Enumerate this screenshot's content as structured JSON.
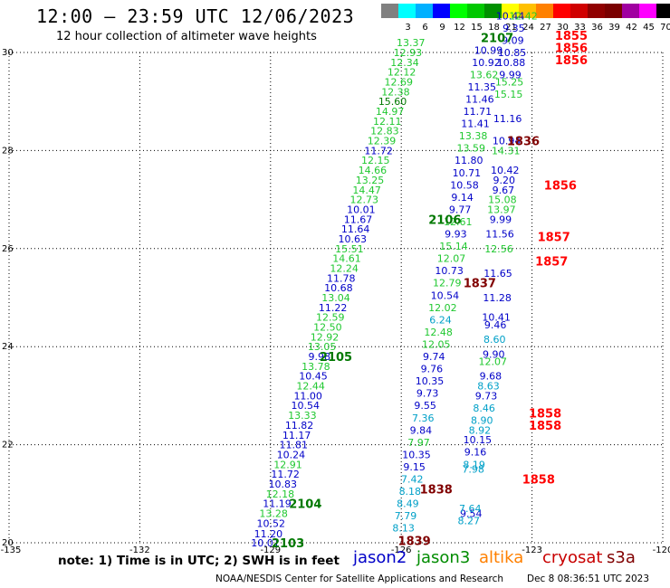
{
  "header": {
    "title": "12:00 – 23:59 UTC 12/06/2023",
    "subtitle": "12 hour collection of altimeter wave heights"
  },
  "legend": {
    "unit": "(ft)",
    "swatches": [
      {
        "label": "",
        "color": "#808080"
      },
      {
        "label": "3",
        "color": "#00ffff"
      },
      {
        "label": "6",
        "color": "#00b0ff"
      },
      {
        "label": "9",
        "color": "#0000ff"
      },
      {
        "label": "12",
        "color": "#00ff00"
      },
      {
        "label": "15",
        "color": "#00c800"
      },
      {
        "label": "18",
        "color": "#009000"
      },
      {
        "label": "21",
        "color": "#ffff00"
      },
      {
        "label": "24",
        "color": "#ffc000"
      },
      {
        "label": "27",
        "color": "#ff8000"
      },
      {
        "label": "30",
        "color": "#ff0000"
      },
      {
        "label": "33",
        "color": "#d00000"
      },
      {
        "label": "36",
        "color": "#900000"
      },
      {
        "label": "39",
        "color": "#7a0000"
      },
      {
        "label": "42",
        "color": "#a000a0"
      },
      {
        "label": "45",
        "color": "#ff00ff"
      },
      {
        "label": "70",
        "color": "#000000"
      }
    ]
  },
  "map": {
    "x_ticks": [
      "-135",
      "-132",
      "-129",
      "-126",
      "-123",
      "-120"
    ],
    "y_ticks": [
      "20",
      "22",
      "24",
      "26",
      "28",
      "30"
    ],
    "lon_range": [
      -135,
      -120
    ],
    "lat_range": [
      20,
      30
    ],
    "grid": true
  },
  "colors": {
    "blue": "#0000c8",
    "green": "#20c830",
    "cyan": "#00a0c8",
    "darkgreen": "#007800",
    "red": "#ff0000",
    "darkred": "#800000"
  },
  "observations": [
    {
      "lon": -129.12,
      "lat": 20.0,
      "text": "10.01",
      "c": "blue"
    },
    {
      "lon": -129.05,
      "lat": 20.18,
      "text": "11.20",
      "c": "blue"
    },
    {
      "lon": -128.99,
      "lat": 20.4,
      "text": "10.52",
      "c": "blue"
    },
    {
      "lon": -128.93,
      "lat": 20.6,
      "text": "13.28",
      "c": "green"
    },
    {
      "lon": -128.85,
      "lat": 20.8,
      "text": "11.19",
      "c": "blue"
    },
    {
      "lon": -128.78,
      "lat": 21.0,
      "text": "12.18",
      "c": "green"
    },
    {
      "lon": -128.72,
      "lat": 21.2,
      "text": "10.83",
      "c": "blue"
    },
    {
      "lon": -128.66,
      "lat": 21.4,
      "text": "11.72",
      "c": "blue"
    },
    {
      "lon": -128.6,
      "lat": 21.6,
      "text": "12.91",
      "c": "green"
    },
    {
      "lon": -128.53,
      "lat": 21.8,
      "text": "10.24",
      "c": "blue"
    },
    {
      "lon": -128.47,
      "lat": 22.0,
      "text": "11.81",
      "c": "blue"
    },
    {
      "lon": -128.4,
      "lat": 22.2,
      "text": "11.17",
      "c": "blue"
    },
    {
      "lon": -128.34,
      "lat": 22.4,
      "text": "11.82",
      "c": "blue"
    },
    {
      "lon": -128.27,
      "lat": 22.6,
      "text": "13.33",
      "c": "green"
    },
    {
      "lon": -128.2,
      "lat": 22.8,
      "text": "10.54",
      "c": "blue"
    },
    {
      "lon": -128.14,
      "lat": 23.0,
      "text": "11.00",
      "c": "blue"
    },
    {
      "lon": -128.08,
      "lat": 23.2,
      "text": "12.44",
      "c": "green"
    },
    {
      "lon": -128.02,
      "lat": 23.4,
      "text": "10.45",
      "c": "blue"
    },
    {
      "lon": -127.96,
      "lat": 23.6,
      "text": "13.78",
      "c": "green"
    },
    {
      "lon": -127.88,
      "lat": 23.8,
      "text": "9.98",
      "c": "blue"
    },
    {
      "lon": -127.82,
      "lat": 24.0,
      "text": "13.05",
      "c": "green"
    },
    {
      "lon": -127.76,
      "lat": 24.2,
      "text": "12.92",
      "c": "green"
    },
    {
      "lon": -127.69,
      "lat": 24.4,
      "text": "12.50",
      "c": "green"
    },
    {
      "lon": -127.63,
      "lat": 24.6,
      "text": "12.59",
      "c": "green"
    },
    {
      "lon": -127.57,
      "lat": 24.8,
      "text": "11.22",
      "c": "blue"
    },
    {
      "lon": -127.5,
      "lat": 25.0,
      "text": "13.04",
      "c": "green"
    },
    {
      "lon": -127.44,
      "lat": 25.2,
      "text": "10.68",
      "c": "blue"
    },
    {
      "lon": -127.38,
      "lat": 25.4,
      "text": "11.78",
      "c": "blue"
    },
    {
      "lon": -127.31,
      "lat": 25.6,
      "text": "12.24",
      "c": "green"
    },
    {
      "lon": -127.25,
      "lat": 25.8,
      "text": "14.61",
      "c": "green"
    },
    {
      "lon": -127.19,
      "lat": 26.0,
      "text": "15.51",
      "c": "green"
    },
    {
      "lon": -127.12,
      "lat": 26.2,
      "text": "10.63",
      "c": "blue"
    },
    {
      "lon": -127.05,
      "lat": 26.4,
      "text": "11.64",
      "c": "blue"
    },
    {
      "lon": -126.99,
      "lat": 26.6,
      "text": "11.67",
      "c": "blue"
    },
    {
      "lon": -126.92,
      "lat": 26.8,
      "text": "10.01",
      "c": "blue"
    },
    {
      "lon": -126.85,
      "lat": 27.0,
      "text": "12.73",
      "c": "green"
    },
    {
      "lon": -126.79,
      "lat": 27.2,
      "text": "14.47",
      "c": "green"
    },
    {
      "lon": -126.72,
      "lat": 27.4,
      "text": "13.25",
      "c": "green"
    },
    {
      "lon": -126.66,
      "lat": 27.6,
      "text": "14.66",
      "c": "green"
    },
    {
      "lon": -126.59,
      "lat": 27.8,
      "text": "12.15",
      "c": "green"
    },
    {
      "lon": -126.52,
      "lat": 28.0,
      "text": "11.72",
      "c": "blue"
    },
    {
      "lon": -126.45,
      "lat": 28.2,
      "text": "12.39",
      "c": "green"
    },
    {
      "lon": -126.38,
      "lat": 28.4,
      "text": "12.83",
      "c": "green"
    },
    {
      "lon": -126.32,
      "lat": 28.6,
      "text": "12.11",
      "c": "green"
    },
    {
      "lon": -126.26,
      "lat": 28.8,
      "text": "14.97",
      "c": "green"
    },
    {
      "lon": -126.2,
      "lat": 29.0,
      "text": "15.60",
      "c": "darkgreen"
    },
    {
      "lon": -126.13,
      "lat": 29.2,
      "text": "12.38",
      "c": "green"
    },
    {
      "lon": -126.06,
      "lat": 29.4,
      "text": "12.69",
      "c": "green"
    },
    {
      "lon": -125.99,
      "lat": 29.6,
      "text": "12.12",
      "c": "green"
    },
    {
      "lon": -125.92,
      "lat": 29.8,
      "text": "12.34",
      "c": "green"
    },
    {
      "lon": -125.85,
      "lat": 30.0,
      "text": "12.93",
      "c": "green"
    },
    {
      "lon": -125.78,
      "lat": 30.2,
      "text": "13.37",
      "c": "green"
    },
    {
      "lon": -125.95,
      "lat": 20.3,
      "text": "8.13",
      "c": "cyan"
    },
    {
      "lon": -125.9,
      "lat": 20.55,
      "text": "7.79",
      "c": "cyan"
    },
    {
      "lon": -125.85,
      "lat": 20.8,
      "text": "8.49",
      "c": "cyan"
    },
    {
      "lon": -125.8,
      "lat": 21.05,
      "text": "8.18",
      "c": "cyan"
    },
    {
      "lon": -125.75,
      "lat": 21.3,
      "text": "7.42",
      "c": "cyan"
    },
    {
      "lon": -125.7,
      "lat": 21.55,
      "text": "9.15",
      "c": "blue"
    },
    {
      "lon": -125.65,
      "lat": 21.8,
      "text": "10.35",
      "c": "blue"
    },
    {
      "lon": -125.6,
      "lat": 22.05,
      "text": "7.97",
      "c": "green"
    },
    {
      "lon": -125.55,
      "lat": 22.3,
      "text": "9.84",
      "c": "blue"
    },
    {
      "lon": -125.5,
      "lat": 22.55,
      "text": "7.36",
      "c": "cyan"
    },
    {
      "lon": -125.45,
      "lat": 22.8,
      "text": "9.55",
      "c": "blue"
    },
    {
      "lon": -125.4,
      "lat": 23.05,
      "text": "9.73",
      "c": "blue"
    },
    {
      "lon": -125.35,
      "lat": 23.3,
      "text": "10.35",
      "c": "blue"
    },
    {
      "lon": -125.3,
      "lat": 23.55,
      "text": "9.76",
      "c": "blue"
    },
    {
      "lon": -125.25,
      "lat": 23.8,
      "text": "9.74",
      "c": "blue"
    },
    {
      "lon": -125.2,
      "lat": 24.05,
      "text": "12.05",
      "c": "green"
    },
    {
      "lon": -125.15,
      "lat": 24.3,
      "text": "12.48",
      "c": "green"
    },
    {
      "lon": -125.1,
      "lat": 24.55,
      "text": "6.24",
      "c": "cyan"
    },
    {
      "lon": -125.05,
      "lat": 24.8,
      "text": "12.02",
      "c": "green"
    },
    {
      "lon": -125.0,
      "lat": 25.05,
      "text": "10.54",
      "c": "blue"
    },
    {
      "lon": -124.95,
      "lat": 25.3,
      "text": "12.79",
      "c": "green"
    },
    {
      "lon": -124.9,
      "lat": 25.55,
      "text": "10.73",
      "c": "blue"
    },
    {
      "lon": -124.85,
      "lat": 25.8,
      "text": "12.07",
      "c": "green"
    },
    {
      "lon": -124.8,
      "lat": 26.05,
      "text": "15.14",
      "c": "green"
    },
    {
      "lon": -124.75,
      "lat": 26.3,
      "text": "9.93",
      "c": "blue"
    },
    {
      "lon": -124.7,
      "lat": 26.55,
      "text": "12.61",
      "c": "green"
    },
    {
      "lon": -124.65,
      "lat": 26.8,
      "text": "9.77",
      "c": "blue"
    },
    {
      "lon": -124.6,
      "lat": 27.05,
      "text": "9.14",
      "c": "blue"
    },
    {
      "lon": -124.55,
      "lat": 27.3,
      "text": "10.58",
      "c": "blue"
    },
    {
      "lon": -124.5,
      "lat": 27.55,
      "text": "10.71",
      "c": "blue"
    },
    {
      "lon": -124.45,
      "lat": 27.8,
      "text": "11.80",
      "c": "blue"
    },
    {
      "lon": -124.4,
      "lat": 28.05,
      "text": "13.59",
      "c": "green"
    },
    {
      "lon": -124.35,
      "lat": 28.3,
      "text": "13.38",
      "c": "green"
    },
    {
      "lon": -124.3,
      "lat": 28.55,
      "text": "11.41",
      "c": "blue"
    },
    {
      "lon": -124.25,
      "lat": 28.8,
      "text": "11.71",
      "c": "blue"
    },
    {
      "lon": -124.2,
      "lat": 29.05,
      "text": "11.46",
      "c": "blue"
    },
    {
      "lon": -124.15,
      "lat": 29.3,
      "text": "11.35",
      "c": "blue"
    },
    {
      "lon": -124.1,
      "lat": 29.55,
      "text": "13.62",
      "c": "green"
    },
    {
      "lon": -124.05,
      "lat": 29.8,
      "text": "10.92",
      "c": "blue"
    },
    {
      "lon": -124.0,
      "lat": 30.05,
      "text": "10.99",
      "c": "blue"
    },
    {
      "lon": -124.4,
      "lat": 20.6,
      "text": "9.54",
      "c": "blue"
    },
    {
      "lon": -124.45,
      "lat": 20.45,
      "text": "8.27",
      "c": "cyan"
    },
    {
      "lon": -124.42,
      "lat": 20.7,
      "text": "7.64",
      "c": "cyan"
    },
    {
      "lon": -124.35,
      "lat": 21.5,
      "text": "7.98",
      "c": "cyan"
    },
    {
      "lon": -124.33,
      "lat": 21.6,
      "text": "8.19",
      "c": "cyan"
    },
    {
      "lon": -124.3,
      "lat": 21.85,
      "text": "9.16",
      "c": "blue"
    },
    {
      "lon": -124.25,
      "lat": 22.1,
      "text": "10.15",
      "c": "blue"
    },
    {
      "lon": -124.2,
      "lat": 22.3,
      "text": "8.92",
      "c": "cyan"
    },
    {
      "lon": -124.15,
      "lat": 22.5,
      "text": "8.90",
      "c": "cyan"
    },
    {
      "lon": -124.1,
      "lat": 22.75,
      "text": "8.46",
      "c": "cyan"
    },
    {
      "lon": -124.05,
      "lat": 23.0,
      "text": "9.73",
      "c": "blue"
    },
    {
      "lon": -124.0,
      "lat": 23.2,
      "text": "8.63",
      "c": "cyan"
    },
    {
      "lon": -123.95,
      "lat": 23.4,
      "text": "9.68",
      "c": "blue"
    },
    {
      "lon": -123.9,
      "lat": 23.7,
      "text": "12.07",
      "c": "green"
    },
    {
      "lon": -123.88,
      "lat": 23.85,
      "text": "9.90",
      "c": "blue"
    },
    {
      "lon": -123.86,
      "lat": 24.15,
      "text": "8.60",
      "c": "cyan"
    },
    {
      "lon": -123.84,
      "lat": 24.45,
      "text": "9.46",
      "c": "blue"
    },
    {
      "lon": -123.82,
      "lat": 24.6,
      "text": "10.41",
      "c": "blue"
    },
    {
      "lon": -123.8,
      "lat": 25.0,
      "text": "11.28",
      "c": "blue"
    },
    {
      "lon": -123.78,
      "lat": 25.5,
      "text": "11.65",
      "c": "blue"
    },
    {
      "lon": -123.76,
      "lat": 26.0,
      "text": "12.56",
      "c": "green"
    },
    {
      "lon": -123.74,
      "lat": 26.3,
      "text": "11.56",
      "c": "blue"
    },
    {
      "lon": -123.72,
      "lat": 26.6,
      "text": "9.99",
      "c": "blue"
    },
    {
      "lon": -123.7,
      "lat": 26.8,
      "text": "13.97",
      "c": "green"
    },
    {
      "lon": -123.68,
      "lat": 27.0,
      "text": "15.08",
      "c": "green"
    },
    {
      "lon": -123.66,
      "lat": 27.2,
      "text": "9.67",
      "c": "blue"
    },
    {
      "lon": -123.64,
      "lat": 27.4,
      "text": "9.20",
      "c": "blue"
    },
    {
      "lon": -123.62,
      "lat": 27.6,
      "text": "10.42",
      "c": "blue"
    },
    {
      "lon": -123.6,
      "lat": 28.0,
      "text": "14.31",
      "c": "green"
    },
    {
      "lon": -123.58,
      "lat": 28.2,
      "text": "10.94",
      "c": "blue"
    },
    {
      "lon": -123.56,
      "lat": 28.65,
      "text": "11.16",
      "c": "blue"
    },
    {
      "lon": -123.54,
      "lat": 29.15,
      "text": "15.15",
      "c": "green"
    },
    {
      "lon": -123.52,
      "lat": 29.4,
      "text": "15.25",
      "c": "green"
    },
    {
      "lon": -123.5,
      "lat": 29.55,
      "text": "9.99",
      "c": "blue"
    },
    {
      "lon": -123.48,
      "lat": 29.8,
      "text": "10.88",
      "c": "blue"
    },
    {
      "lon": -123.46,
      "lat": 30.0,
      "text": "10.85",
      "c": "blue"
    },
    {
      "lon": -123.44,
      "lat": 30.25,
      "text": "9.09",
      "c": "blue"
    },
    {
      "lon": -123.42,
      "lat": 30.5,
      "text": "9.35",
      "c": "blue"
    },
    {
      "lon": -123.5,
      "lat": 30.75,
      "text": "10.44",
      "c": "blue"
    },
    {
      "lon": -123.2,
      "lat": 30.75,
      "text": "12.42",
      "c": "green"
    }
  ],
  "time_labels": [
    {
      "lon": -128.6,
      "lat": 20.0,
      "text": "2103",
      "c": "darkgreen"
    },
    {
      "lon": -128.2,
      "lat": 20.8,
      "text": "2104",
      "c": "darkgreen"
    },
    {
      "lon": -127.5,
      "lat": 23.8,
      "text": "2105",
      "c": "darkgreen"
    },
    {
      "lon": -125.0,
      "lat": 26.6,
      "text": "2106",
      "c": "darkgreen"
    },
    {
      "lon": -123.8,
      "lat": 30.3,
      "text": "2107",
      "c": "darkgreen"
    },
    {
      "lon": -125.7,
      "lat": 20.05,
      "text": "1839",
      "c": "darkred"
    },
    {
      "lon": -125.2,
      "lat": 21.1,
      "text": "1838",
      "c": "darkred"
    },
    {
      "lon": -124.2,
      "lat": 25.3,
      "text": "1837",
      "c": "darkred"
    },
    {
      "lon": -123.2,
      "lat": 28.2,
      "text": "1836",
      "c": "darkred"
    },
    {
      "lon": -122.85,
      "lat": 21.3,
      "text": "1858",
      "c": "red"
    },
    {
      "lon": -122.7,
      "lat": 22.4,
      "text": "1858",
      "c": "red"
    },
    {
      "lon": -122.7,
      "lat": 22.65,
      "text": "1858",
      "c": "red"
    },
    {
      "lon": -122.55,
      "lat": 25.75,
      "text": "1857",
      "c": "red"
    },
    {
      "lon": -122.5,
      "lat": 26.25,
      "text": "1857",
      "c": "red"
    },
    {
      "lon": -122.35,
      "lat": 27.3,
      "text": "1856",
      "c": "red"
    },
    {
      "lon": -122.1,
      "lat": 29.85,
      "text": "1856",
      "c": "red"
    },
    {
      "lon": -122.1,
      "lat": 30.1,
      "text": "1856",
      "c": "red"
    },
    {
      "lon": -122.1,
      "lat": 30.35,
      "text": "1855",
      "c": "red"
    }
  ],
  "footer": {
    "note": "note:  1) Time is in UTC; 2) SWH is in feet",
    "satellites": [
      {
        "name": "jason2",
        "color": "#0000c8"
      },
      {
        "name": "jason3",
        "color": "#008c00"
      },
      {
        "name": "altika",
        "color": "#ff8000"
      },
      {
        "name": "cryosat",
        "color": "#c80000"
      },
      {
        "name": "s3a",
        "color": "#800000"
      }
    ],
    "credit": "NOAA/NESDIS Center for Satellite Applications and Research",
    "date": "Dec  8 08:36:51 UTC 2023"
  }
}
